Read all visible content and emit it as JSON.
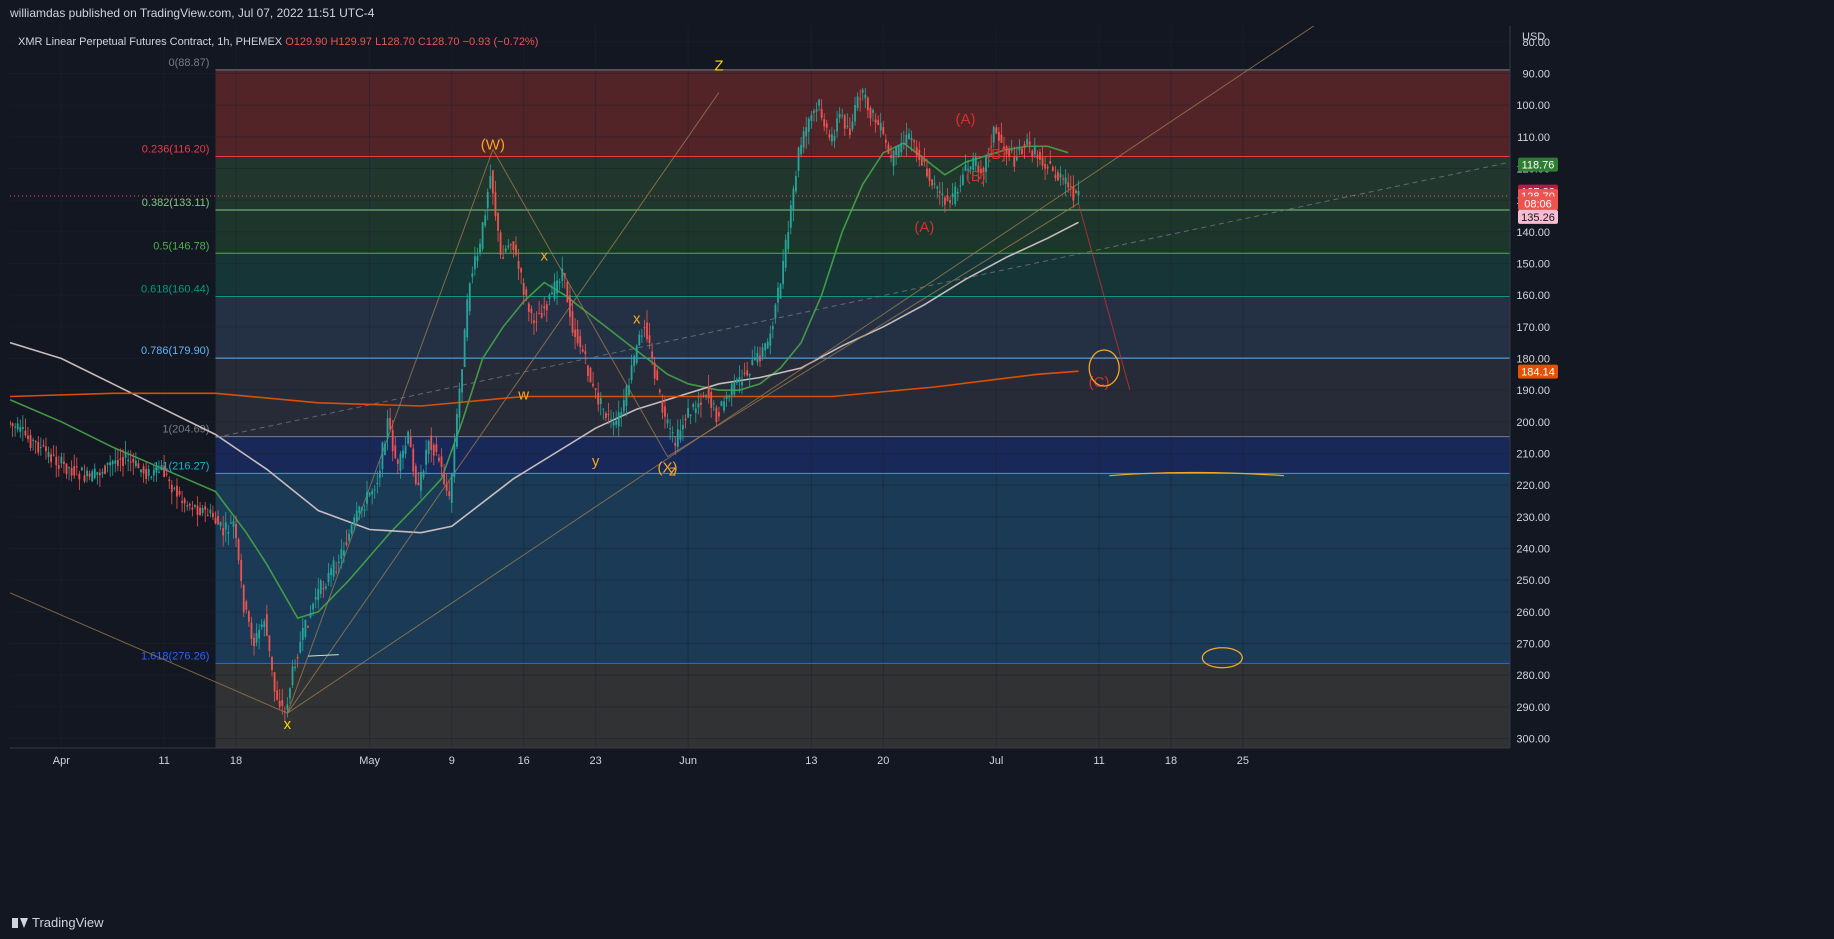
{
  "publisher": "williamdas published on TradingView.com, Jul 07, 2022 11:51 UTC-4",
  "legend": {
    "symbol": "XMR Linear Perpetual Futures Contract, 1h, PHEMEX",
    "ohlc": "O129.90  H129.97  L128.70  C128.70  −0.93 (−0.72%)"
  },
  "footer": {
    "brand": "TradingView"
  },
  "colors": {
    "background": "#131722",
    "grid": "#1e222d",
    "candle_up": "#26a69a",
    "candle_down": "#ef5350",
    "ma_green": "#43a047",
    "ma_white": "#d1c4c4",
    "ma_orange": "#e65100",
    "wave_orange": "#f5a623",
    "wave_yellow": "#ffd600",
    "wave_red": "#d32f2f"
  },
  "chart_data": {
    "type": "candlestick",
    "currency_label": "USD",
    "y_axis": {
      "inverted": true,
      "range": [
        75,
        303
      ],
      "ticks": [
        "80.00",
        "90.00",
        "100.00",
        "110.00",
        "120.00",
        "130.00",
        "140.00",
        "150.00",
        "160.00",
        "170.00",
        "180.00",
        "190.00",
        "200.00",
        "210.00",
        "220.00",
        "230.00",
        "240.00",
        "250.00",
        "260.00",
        "270.00",
        "280.00",
        "290.00",
        "300.00"
      ]
    },
    "x_axis": {
      "ticks": [
        {
          "label": "Apr",
          "t": 0
        },
        {
          "label": "11",
          "t": 10
        },
        {
          "label": "18",
          "t": 17
        },
        {
          "label": "May",
          "t": 30
        },
        {
          "label": "9",
          "t": 38
        },
        {
          "label": "16",
          "t": 45
        },
        {
          "label": "23",
          "t": 52
        },
        {
          "label": "Jun",
          "t": 61
        },
        {
          "label": "13",
          "t": 73
        },
        {
          "label": "20",
          "t": 80
        },
        {
          "label": "Jul",
          "t": 91
        },
        {
          "label": "11",
          "t": 101
        },
        {
          "label": "18",
          "t": 108
        },
        {
          "label": "25",
          "t": 115
        }
      ],
      "range": [
        -5,
        141
      ]
    },
    "price_path": [
      [
        -5,
        200
      ],
      [
        0,
        213
      ],
      [
        3,
        218
      ],
      [
        6,
        211
      ],
      [
        9,
        217
      ],
      [
        10,
        215
      ],
      [
        12,
        225
      ],
      [
        14,
        228
      ],
      [
        15,
        230
      ],
      [
        16,
        235
      ],
      [
        17,
        232
      ],
      [
        18,
        258
      ],
      [
        19,
        270
      ],
      [
        20,
        262
      ],
      [
        21,
        285
      ],
      [
        22,
        292
      ],
      [
        23,
        275
      ],
      [
        24,
        265
      ],
      [
        25,
        255
      ],
      [
        27,
        245
      ],
      [
        29,
        230
      ],
      [
        31,
        218
      ],
      [
        32,
        200
      ],
      [
        33,
        215
      ],
      [
        34,
        205
      ],
      [
        35,
        222
      ],
      [
        36,
        205
      ],
      [
        37,
        212
      ],
      [
        38,
        225
      ],
      [
        39,
        190
      ],
      [
        40,
        155
      ],
      [
        41,
        145
      ],
      [
        42,
        120
      ],
      [
        43,
        148
      ],
      [
        44,
        142
      ],
      [
        45,
        155
      ],
      [
        46,
        168
      ],
      [
        47,
        165
      ],
      [
        48,
        160
      ],
      [
        49,
        152
      ],
      [
        50,
        170
      ],
      [
        51,
        178
      ],
      [
        52,
        190
      ],
      [
        53,
        196
      ],
      [
        54,
        202
      ],
      [
        55,
        195
      ],
      [
        56,
        180
      ],
      [
        57,
        168
      ],
      [
        58,
        185
      ],
      [
        59,
        200
      ],
      [
        60,
        207
      ],
      [
        61,
        198
      ],
      [
        62,
        195
      ],
      [
        63,
        190
      ],
      [
        64,
        198
      ],
      [
        65,
        192
      ],
      [
        66,
        188
      ],
      [
        67,
        184
      ],
      [
        68,
        180
      ],
      [
        69,
        175
      ],
      [
        70,
        160
      ],
      [
        71,
        140
      ],
      [
        72,
        115
      ],
      [
        73,
        105
      ],
      [
        74,
        100
      ],
      [
        75,
        112
      ],
      [
        76,
        103
      ],
      [
        77,
        108
      ],
      [
        78,
        96
      ],
      [
        79,
        102
      ],
      [
        80,
        108
      ],
      [
        81,
        118
      ],
      [
        82,
        112
      ],
      [
        83,
        110
      ],
      [
        84,
        118
      ],
      [
        85,
        124
      ],
      [
        86,
        130
      ],
      [
        87,
        130
      ],
      [
        88,
        122
      ],
      [
        89,
        118
      ],
      [
        90,
        120
      ],
      [
        91,
        108
      ],
      [
        92,
        113
      ],
      [
        93,
        117
      ],
      [
        94,
        112
      ],
      [
        95,
        115
      ],
      [
        96,
        118
      ],
      [
        97,
        122
      ],
      [
        98,
        125
      ],
      [
        99,
        128.7
      ]
    ],
    "moving_averages": [
      {
        "name": "MA green",
        "color": "#43a047",
        "points": [
          [
            -5,
            193
          ],
          [
            0,
            200
          ],
          [
            5,
            208
          ],
          [
            10,
            215
          ],
          [
            15,
            222
          ],
          [
            18,
            235
          ],
          [
            20,
            245
          ],
          [
            23,
            262
          ],
          [
            25,
            260
          ],
          [
            28,
            250
          ],
          [
            32,
            235
          ],
          [
            35,
            225
          ],
          [
            37,
            218
          ],
          [
            39,
            200
          ],
          [
            41,
            180
          ],
          [
            43,
            170
          ],
          [
            45,
            162
          ],
          [
            47,
            156
          ],
          [
            49,
            160
          ],
          [
            51,
            165
          ],
          [
            53,
            170
          ],
          [
            55,
            175
          ],
          [
            57,
            180
          ],
          [
            59,
            185
          ],
          [
            61,
            188
          ],
          [
            64,
            190
          ],
          [
            66,
            190
          ],
          [
            68,
            188
          ],
          [
            70,
            183
          ],
          [
            72,
            175
          ],
          [
            74,
            160
          ],
          [
            76,
            140
          ],
          [
            78,
            125
          ],
          [
            80,
            115
          ],
          [
            82,
            112
          ],
          [
            84,
            117
          ],
          [
            86,
            122
          ],
          [
            88,
            118
          ],
          [
            90,
            116
          ],
          [
            92,
            114
          ],
          [
            94,
            113
          ],
          [
            96,
            113
          ],
          [
            98,
            115
          ]
        ]
      },
      {
        "name": "MA white",
        "color": "#d1c4c4",
        "points": [
          [
            -5,
            175
          ],
          [
            0,
            180
          ],
          [
            5,
            188
          ],
          [
            10,
            196
          ],
          [
            15,
            204
          ],
          [
            20,
            215
          ],
          [
            25,
            228
          ],
          [
            30,
            234
          ],
          [
            35,
            235
          ],
          [
            38,
            233
          ],
          [
            40,
            228
          ],
          [
            44,
            218
          ],
          [
            48,
            210
          ],
          [
            52,
            202
          ],
          [
            56,
            196
          ],
          [
            60,
            192
          ],
          [
            64,
            188
          ],
          [
            68,
            186
          ],
          [
            72,
            183
          ],
          [
            76,
            176
          ],
          [
            80,
            170
          ],
          [
            84,
            163
          ],
          [
            88,
            155
          ],
          [
            92,
            148
          ],
          [
            96,
            142
          ],
          [
            99,
            137
          ]
        ]
      },
      {
        "name": "MA orange",
        "color": "#e65100",
        "points": [
          [
            -5,
            192
          ],
          [
            5,
            191
          ],
          [
            15,
            191
          ],
          [
            25,
            194
          ],
          [
            35,
            195
          ],
          [
            45,
            192
          ],
          [
            55,
            192
          ],
          [
            65,
            192
          ],
          [
            75,
            192
          ],
          [
            85,
            189
          ],
          [
            95,
            185
          ],
          [
            99,
            184
          ]
        ]
      }
    ],
    "fibonacci": [
      {
        "ratio": "0",
        "label": "0(88.87)",
        "value": 88.87,
        "color": "#787b86",
        "band": "#5a2629"
      },
      {
        "ratio": "0.236",
        "label": "0.236(116.20)",
        "value": 116.2,
        "color": "#f23645",
        "band": "#243a2f"
      },
      {
        "ratio": "0.382",
        "label": "0.382(133.11)",
        "value": 133.11,
        "color": "#81c784",
        "band": "#1f3a2e"
      },
      {
        "ratio": "0.5",
        "label": "0.5(146.78)",
        "value": 146.78,
        "color": "#4caf50",
        "band": "#17383a"
      },
      {
        "ratio": "0.618",
        "label": "0.618(160.44)",
        "value": 160.44,
        "color": "#089981",
        "band": "#273449"
      },
      {
        "ratio": "0.786",
        "label": "0.786(179.90)",
        "value": 179.9,
        "color": "#64b5f6",
        "band": "#2a2e3a"
      },
      {
        "ratio": "1",
        "label": "1(204.69)",
        "value": 204.69,
        "color": "#787b86",
        "band": "#1a2a5e"
      },
      {
        "ratio": "1.1",
        "label": "1.1(216.27)",
        "value": 216.27,
        "color": "#00bcd4",
        "band": "#1c3e5c"
      },
      {
        "ratio": "1.618",
        "label": "1.618(276.26)",
        "value": 276.26,
        "color": "#2962ff",
        "band": "#353535"
      }
    ],
    "fib_range_t": [
      15,
      130
    ],
    "price_badges": [
      {
        "text": "118.76",
        "value": 118.76,
        "color": "#2e7d32"
      },
      {
        "text": "127.32",
        "value": 127.32,
        "color": "#b71c3c"
      },
      {
        "text": "128.70",
        "value": 128.7,
        "color": "#ef5350"
      },
      {
        "text": "08:06",
        "value": 131.0,
        "color": "#ef5350"
      },
      {
        "text": "135.26",
        "value": 135.26,
        "color": "#f8bbd0"
      },
      {
        "text": "184.14",
        "value": 184.14,
        "color": "#e65100"
      }
    ],
    "wave_labels": [
      {
        "text": "(W)",
        "t": 42,
        "v": 114,
        "color": "#f5a623"
      },
      {
        "text": "Z",
        "t": 64,
        "v": 89,
        "color": "#ffd600"
      },
      {
        "text": "x",
        "t": 47,
        "v": 149,
        "color": "#f5a623"
      },
      {
        "text": "x",
        "t": 56,
        "v": 169,
        "color": "#f5a623"
      },
      {
        "text": "w",
        "t": 45,
        "v": 193,
        "color": "#f5a623"
      },
      {
        "text": "y",
        "t": 52,
        "v": 214,
        "color": "#f5a623"
      },
      {
        "text": "(X)",
        "t": 59,
        "v": 216,
        "color": "#f5a623"
      },
      {
        "text": "z",
        "t": 59.5,
        "v": 217,
        "color": "#f5a623"
      },
      {
        "text": "x",
        "t": 22,
        "v": 297,
        "color": "#ffd600"
      },
      {
        "text": "(A)",
        "t": 88,
        "v": 106,
        "color": "#d32f2f"
      },
      {
        "text": "(B)",
        "t": 91,
        "v": 117,
        "color": "#d32f2f"
      },
      {
        "text": "(B)",
        "t": 89,
        "v": 124,
        "color": "#d32f2f"
      },
      {
        "text": "(A)",
        "t": 84,
        "v": 140,
        "color": "#d32f2f"
      },
      {
        "text": "(C)",
        "t": 101,
        "v": 189,
        "color": "#d32f2f"
      }
    ]
  }
}
